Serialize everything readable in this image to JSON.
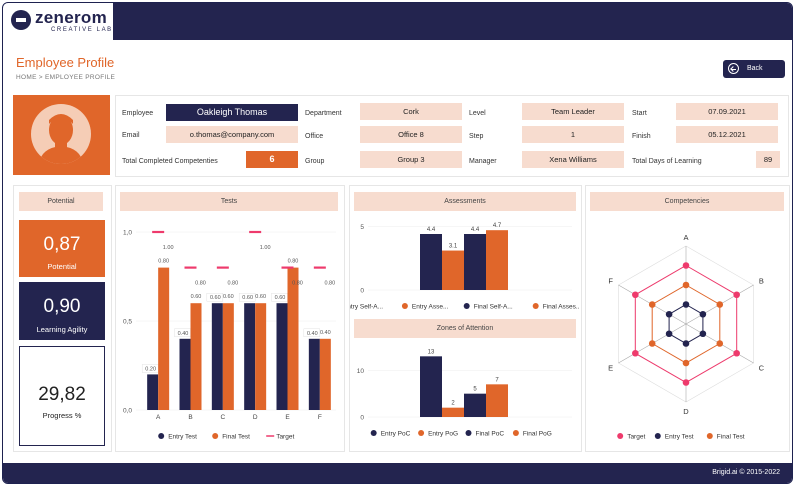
{
  "brand": {
    "name": "zenerom",
    "tagline": "CREATIVE LAB"
  },
  "header": {
    "title": "Employee Profile",
    "breadcrumb": "HOME > EMPLOYEE PROFILE",
    "back_label": "Back"
  },
  "profile": {
    "employee_label": "Employee",
    "employee": "Oakleigh Thomas",
    "email_label": "Email",
    "email": "o.thomas@company.com",
    "competencies_label": "Total Completed Competenties",
    "competencies": "6",
    "department_label": "Department",
    "department": "Cork",
    "office_label": "Office",
    "office": "Office 8",
    "group_label": "Group",
    "group": "Group 3",
    "level_label": "Level",
    "level": "Team Leader",
    "step_label": "Step",
    "step": "1",
    "manager_label": "Manager",
    "manager": "Xena Williams",
    "start_label": "Start",
    "start": "07.09.2021",
    "finish_label": "Finish",
    "finish": "05.12.2021",
    "days_label": "Total Days of Learning",
    "days": "89"
  },
  "potential_panel": {
    "title": "Potential",
    "potential_value": "0,87",
    "potential_caption": "Potential",
    "agility_value": "0,90",
    "agility_caption": "Learning Agility",
    "progress_value": "29,82",
    "progress_caption": "Progress %"
  },
  "colors": {
    "navy": "#23244f",
    "orange": "#e0662a",
    "pink": "#ee3a6c",
    "peach": "#f7dccf"
  },
  "chart_data": [
    {
      "title": "Tests",
      "type": "bar",
      "categories": [
        "A",
        "B",
        "C",
        "D",
        "E",
        "F"
      ],
      "yticks": [
        "0,0",
        "0,5",
        "1,0"
      ],
      "ylim": [
        0,
        1
      ],
      "series": [
        {
          "name": "Entry Test",
          "color": "#23244f",
          "values": [
            0.2,
            0.4,
            0.6,
            0.6,
            0.6,
            0.4
          ],
          "labels": [
            "0.20",
            "0.40",
            "0.60",
            "0.60",
            "0.60",
            "0.40"
          ]
        },
        {
          "name": "Final Test",
          "color": "#e0662a",
          "values": [
            0.8,
            0.6,
            0.6,
            0.6,
            0.8,
            0.4
          ],
          "labels": [
            "0.80",
            "0.60",
            "0.60",
            "0.60",
            "0.80",
            "0.40"
          ]
        },
        {
          "name": "Target",
          "color": "#ee3a6c",
          "values": [
            1.0,
            0.8,
            0.8,
            1.0,
            0.8,
            0.8
          ],
          "labels": [
            "1.00",
            "0.80",
            "0.80",
            "1.00",
            "0.80",
            "0.80"
          ]
        }
      ],
      "legend": "bottom"
    },
    {
      "title": "Assessments",
      "type": "bar",
      "yticks": [
        "0",
        "5"
      ],
      "ylim": [
        0,
        5.5
      ],
      "series": [
        {
          "name": "Entry Self-A...",
          "color": "#23244f",
          "values": [
            4.4
          ],
          "labels": [
            "4.4"
          ]
        },
        {
          "name": "Entry Asse...",
          "color": "#e0662a",
          "values": [
            3.1
          ],
          "labels": [
            "3.1"
          ]
        },
        {
          "name": "Final Self-A...",
          "color": "#23244f",
          "values": [
            4.4
          ],
          "labels": [
            "4.4"
          ]
        },
        {
          "name": "Final Asses...",
          "color": "#e0662a",
          "values": [
            4.7
          ],
          "labels": [
            "4.7"
          ]
        }
      ],
      "legend": "bottom"
    },
    {
      "title": "Zones of Attention",
      "type": "bar",
      "yticks": [
        "0",
        "10"
      ],
      "ylim": [
        0,
        15
      ],
      "series": [
        {
          "name": "Entry PoC",
          "color": "#23244f",
          "values": [
            13
          ],
          "labels": [
            "13"
          ]
        },
        {
          "name": "Entry PoG",
          "color": "#e0662a",
          "values": [
            2
          ],
          "labels": [
            "2"
          ]
        },
        {
          "name": "Final PoC",
          "color": "#23244f",
          "values": [
            5
          ],
          "labels": [
            "5"
          ]
        },
        {
          "name": "Final PoG",
          "color": "#e0662a",
          "values": [
            7
          ],
          "labels": [
            "7"
          ]
        }
      ],
      "legend": "bottom"
    },
    {
      "title": "Competencies",
      "type": "radar",
      "axes": [
        "A",
        "B",
        "C",
        "D",
        "E",
        "F"
      ],
      "rmax": 1,
      "series": [
        {
          "name": "Target",
          "color": "#ee3a6c",
          "values": [
            0.75,
            0.75,
            0.75,
            0.75,
            0.75,
            0.75
          ]
        },
        {
          "name": "Entry Test",
          "color": "#23244f",
          "values": [
            0.25,
            0.25,
            0.25,
            0.25,
            0.25,
            0.25
          ]
        },
        {
          "name": "Final Test",
          "color": "#e0662a",
          "values": [
            0.5,
            0.5,
            0.5,
            0.5,
            0.5,
            0.5
          ]
        }
      ],
      "legend": "bottom"
    }
  ],
  "footer": {
    "text": "Brigid.ai © 2015-2022"
  }
}
